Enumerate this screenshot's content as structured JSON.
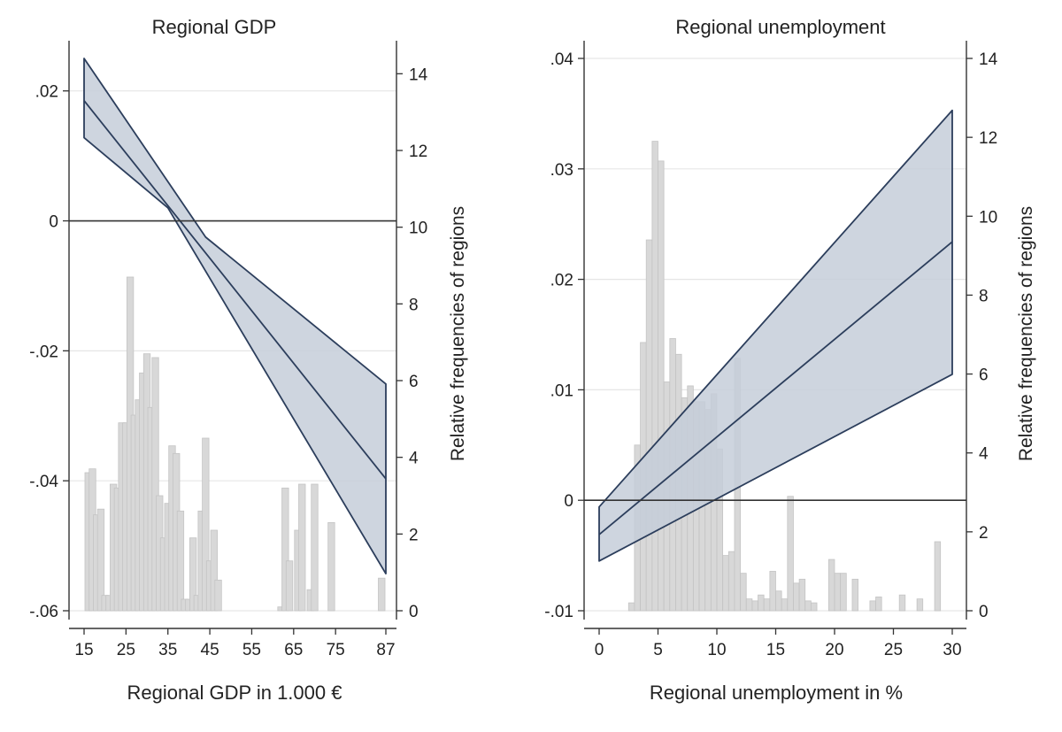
{
  "chart_data": [
    {
      "type": "bar+line",
      "title": "Regional GDP",
      "xlabel": "Regional GDP in 1.000 €",
      "y2label": "Relative frequencies of regions",
      "xlim": [
        15,
        87
      ],
      "ylim": [
        -0.06,
        0.025
      ],
      "y2lim": [
        0,
        14.4
      ],
      "xticks": [
        "15",
        "25",
        "35",
        "45",
        "55",
        "65",
        "75",
        "87"
      ],
      "xtick_values": [
        15,
        25,
        35,
        45,
        55,
        65,
        75,
        87
      ],
      "yticks": [
        ".02",
        "0",
        "-.02",
        "-.04",
        "-.06"
      ],
      "ytick_values": [
        0.02,
        0,
        -0.02,
        -0.04,
        -0.06
      ],
      "y2ticks": [
        "14",
        "12",
        "10",
        "8",
        "6",
        "4",
        "2",
        "0"
      ],
      "y2tick_values": [
        14,
        12,
        10,
        8,
        6,
        4,
        2,
        0
      ],
      "zero_line": true,
      "histogram": {
        "bins": [
          16,
          17,
          18,
          19,
          20,
          21,
          22,
          23,
          24,
          25,
          26,
          27,
          28,
          29,
          30,
          31,
          32,
          33,
          34,
          35,
          36,
          37,
          38,
          39,
          40,
          41,
          42,
          43,
          44,
          45,
          46,
          47,
          48,
          49,
          50,
          51,
          52,
          53,
          54,
          55,
          56,
          62,
          63,
          64,
          65,
          66,
          67,
          68,
          69,
          70,
          71,
          72,
          73,
          74,
          75,
          76,
          77,
          78,
          86
        ],
        "values": [
          3.6,
          3.7,
          2.5,
          2.65,
          0.4,
          0.4,
          3.3,
          3.2,
          4.9,
          4.9,
          8.7,
          5.1,
          5.5,
          6.2,
          6.7,
          5.3,
          6.6,
          3.0,
          1.9,
          2.8,
          4.3,
          4.1,
          2.6,
          0.3,
          0.3,
          1.9,
          0.4,
          2.6,
          4.5,
          1.3,
          2.1,
          0.8,
          0,
          0,
          0,
          0,
          0,
          0,
          0,
          0,
          0,
          0.1,
          3.2,
          1.3,
          0,
          2.1,
          3.3,
          0,
          0.55,
          3.3,
          0,
          0,
          0,
          2.3,
          0,
          0,
          0,
          0,
          0.85
        ]
      },
      "series": [
        {
          "x": [
            15,
            87
          ],
          "y": [
            0.0185,
            -0.0397
          ]
        }
      ],
      "ci_upper": {
        "x": [
          15,
          44,
          87
        ],
        "y": [
          0.025,
          -0.0025,
          -0.0251
        ]
      },
      "ci_lower": {
        "x": [
          15,
          35,
          87
        ],
        "y": [
          0.0128,
          0.002,
          -0.0543
        ]
      },
      "colors": {
        "band": "#c5ced9",
        "line": "#2c3e5c",
        "bars": "#d8d8d8",
        "grid": "#e6e6e6"
      }
    },
    {
      "type": "bar+line",
      "title": "Regional unemployment",
      "xlabel": "Regional unemployment in %",
      "y2label": "Relative frequencies of regions",
      "xlim": [
        0,
        30
      ],
      "ylim": [
        -0.01,
        0.04
      ],
      "y2lim": [
        0,
        14
      ],
      "xticks": [
        "0",
        "5",
        "10",
        "15",
        "20",
        "25",
        "30"
      ],
      "xtick_values": [
        0,
        5,
        10,
        15,
        20,
        25,
        30
      ],
      "yticks": [
        ".04",
        ".03",
        ".02",
        ".01",
        "0",
        "-.01"
      ],
      "ytick_values": [
        0.04,
        0.03,
        0.02,
        0.01,
        0,
        -0.01
      ],
      "y2ticks": [
        "14",
        "12",
        "10",
        "8",
        "6",
        "4",
        "2",
        "0"
      ],
      "y2tick_values": [
        14,
        12,
        10,
        8,
        6,
        4,
        2,
        0
      ],
      "zero_line": true,
      "histogram": {
        "bins": [
          2.75,
          3.25,
          3.75,
          4.25,
          4.75,
          5.25,
          5.75,
          6.25,
          6.75,
          7.25,
          7.75,
          8.25,
          8.75,
          9.25,
          9.75,
          10.25,
          10.75,
          11.25,
          11.75,
          12.25,
          12.75,
          13.25,
          13.75,
          14.25,
          14.75,
          15.25,
          15.75,
          16.25,
          16.75,
          17.25,
          17.75,
          18.25,
          19.75,
          20.25,
          20.75,
          21.75,
          23.25,
          23.75,
          25.75,
          27.25,
          28.75
        ],
        "values": [
          0.2,
          4.2,
          6.8,
          9.4,
          11.9,
          11.4,
          5.8,
          6.9,
          6.5,
          5.4,
          5.7,
          5.3,
          5.3,
          5.1,
          5.5,
          4.1,
          1.4,
          1.5,
          6.4,
          0.95,
          0.3,
          0.25,
          0.4,
          0.3,
          1.0,
          0.5,
          0.3,
          2.9,
          0.7,
          0.8,
          0.25,
          0.2,
          1.3,
          0.95,
          0.95,
          0.8,
          0.25,
          0.35,
          0.4,
          0.3,
          1.75
        ]
      },
      "series": [
        {
          "x": [
            0,
            30
          ],
          "y": [
            -0.0031,
            0.0234
          ]
        }
      ],
      "ci_upper": {
        "x": [
          0,
          30
        ],
        "y": [
          -0.0006,
          0.0353
        ]
      },
      "ci_lower": {
        "x": [
          0,
          30
        ],
        "y": [
          -0.0055,
          0.0114
        ]
      },
      "colors": {
        "band": "#c5ced9",
        "line": "#2c3e5c",
        "bars": "#d8d8d8",
        "grid": "#e6e6e6"
      }
    }
  ]
}
